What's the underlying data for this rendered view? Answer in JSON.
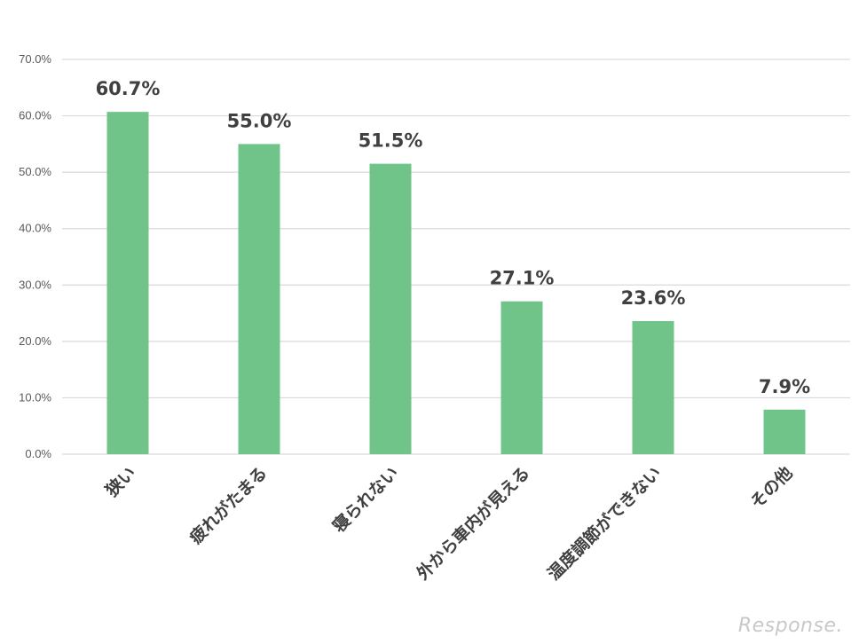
{
  "chart_data": {
    "type": "bar",
    "categories": [
      "狭い",
      "疲れがたまる",
      "寝られない",
      "外から車内が見える",
      "温度調節ができない",
      "その他"
    ],
    "values": [
      60.7,
      55.0,
      51.5,
      27.1,
      23.6,
      7.9
    ],
    "data_labels": [
      "60.7%",
      "55.0%",
      "51.5%",
      "27.1%",
      "23.6%",
      "7.9%"
    ],
    "ylim": [
      0,
      70
    ],
    "yticks": [
      "0.0%",
      "10.0%",
      "20.0%",
      "30.0%",
      "40.0%",
      "50.0%",
      "60.0%",
      "70.0%"
    ],
    "grid": true,
    "legend": "none",
    "bar_color": "#70c48a",
    "grid_color": "#d9d9d9"
  },
  "watermark": "Response."
}
